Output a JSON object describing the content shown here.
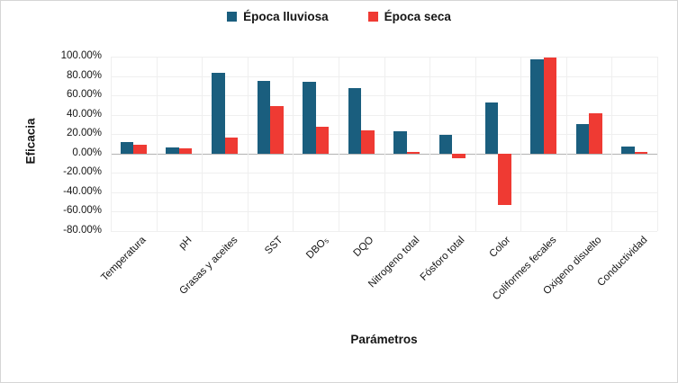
{
  "chart_data": {
    "type": "bar",
    "title": "",
    "categories": [
      "Temperatura",
      "pH",
      "Grasas y aceites",
      "SST",
      "DBO₅",
      "DQO",
      "Nitrogeno total",
      "Fósforo total",
      "Color",
      "Coliformes fecales",
      "Oxigeno disuelto",
      "Conductividad"
    ],
    "series": [
      {
        "name": "Época lluviosa",
        "color": "#1a5e7e",
        "values": [
          12,
          6,
          83.5,
          75,
          74,
          68,
          23,
          19,
          52.5,
          97.5,
          30,
          7
        ]
      },
      {
        "name": "Época seca",
        "color": "#ef3a33",
        "values": [
          9.5,
          5.5,
          17,
          49,
          28,
          24,
          2,
          -4.5,
          -53,
          99.5,
          42,
          1.5
        ]
      }
    ],
    "xlabel": "Parámetros",
    "ylabel": "Eficacia",
    "ylim": [
      -80,
      100
    ],
    "ytick_step": 20,
    "ytick_format": "percent_2dp",
    "ytick_labels": [
      "100.00%",
      "80.00%",
      "60.00%",
      "40.00%",
      "20.00%",
      "0.00%",
      "-20.00%",
      "-40.00%",
      "-60.00%",
      "-80.00%"
    ],
    "grid": true,
    "legend_position": "top"
  },
  "colors": {
    "series_lluviosa": "#1a5e7e",
    "series_seca": "#ef3a33",
    "gridline": "#efefef",
    "zero_line": "#b3b3b3",
    "figure_border": "#d6d6d6",
    "text": "#151515"
  }
}
